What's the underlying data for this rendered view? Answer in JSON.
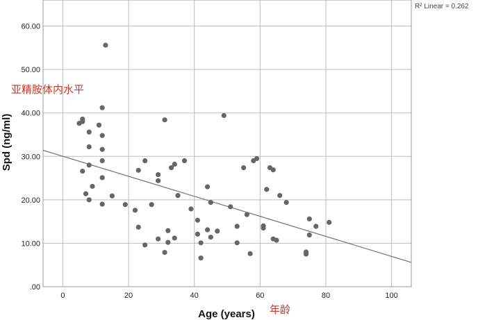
{
  "chart_data": {
    "type": "scatter",
    "xlabel": "Age (years)",
    "ylabel": "Spd (ng/ml)",
    "xlim": [
      -6,
      106
    ],
    "ylim": [
      0,
      66
    ],
    "x_ticks": [
      "0",
      "20",
      "40",
      "60",
      "80",
      "100"
    ],
    "y_ticks": [
      ".00",
      "10.00",
      "20.00",
      "30.00",
      "40.00",
      "50.00",
      "60.00"
    ],
    "grid": true,
    "legend_text": "R² Linear = 0.262",
    "annotations": {
      "ylabel_cn": "亚精胺体内水平",
      "xlabel_cn": "年龄"
    },
    "fit_line": {
      "x": [
        -6,
        106
      ],
      "y": [
        31.4,
        5.6
      ]
    },
    "points": [
      {
        "x": 13,
        "y": 55.6
      },
      {
        "x": 12,
        "y": 41.2
      },
      {
        "x": 49,
        "y": 39.4
      },
      {
        "x": 5,
        "y": 37.6
      },
      {
        "x": 6,
        "y": 38.0
      },
      {
        "x": 6,
        "y": 38.6
      },
      {
        "x": 31,
        "y": 38.4
      },
      {
        "x": 11,
        "y": 37.2
      },
      {
        "x": 8,
        "y": 35.6
      },
      {
        "x": 12,
        "y": 34.8
      },
      {
        "x": 8,
        "y": 32.2
      },
      {
        "x": 12,
        "y": 31.6
      },
      {
        "x": 12,
        "y": 29.0
      },
      {
        "x": 25,
        "y": 29.0
      },
      {
        "x": 37,
        "y": 29.0
      },
      {
        "x": 58,
        "y": 29.0
      },
      {
        "x": 59,
        "y": 29.5
      },
      {
        "x": 8,
        "y": 28.0
      },
      {
        "x": 34,
        "y": 28.2
      },
      {
        "x": 33,
        "y": 27.4
      },
      {
        "x": 55,
        "y": 27.4
      },
      {
        "x": 63,
        "y": 27.4
      },
      {
        "x": 64,
        "y": 26.9
      },
      {
        "x": 6,
        "y": 26.6
      },
      {
        "x": 23,
        "y": 26.8
      },
      {
        "x": 29,
        "y": 25.8
      },
      {
        "x": 12,
        "y": 25.1
      },
      {
        "x": 29,
        "y": 24.4
      },
      {
        "x": 9,
        "y": 23.1
      },
      {
        "x": 44,
        "y": 23.0
      },
      {
        "x": 62,
        "y": 22.4
      },
      {
        "x": 7,
        "y": 21.4
      },
      {
        "x": 15,
        "y": 20.9
      },
      {
        "x": 35,
        "y": 21.0
      },
      {
        "x": 66,
        "y": 21.0
      },
      {
        "x": 8,
        "y": 20.0
      },
      {
        "x": 45,
        "y": 19.4
      },
      {
        "x": 68,
        "y": 19.4
      },
      {
        "x": 12,
        "y": 19.0
      },
      {
        "x": 19,
        "y": 18.9
      },
      {
        "x": 27,
        "y": 18.9
      },
      {
        "x": 39,
        "y": 17.9
      },
      {
        "x": 22,
        "y": 17.6
      },
      {
        "x": 51,
        "y": 18.4
      },
      {
        "x": 56,
        "y": 16.6
      },
      {
        "x": 75,
        "y": 15.6
      },
      {
        "x": 41,
        "y": 15.3
      },
      {
        "x": 81,
        "y": 14.8
      },
      {
        "x": 53,
        "y": 13.9
      },
      {
        "x": 61,
        "y": 14.0
      },
      {
        "x": 77,
        "y": 13.9
      },
      {
        "x": 23,
        "y": 13.7
      },
      {
        "x": 61,
        "y": 13.5
      },
      {
        "x": 44,
        "y": 13.1
      },
      {
        "x": 32,
        "y": 12.9
      },
      {
        "x": 47,
        "y": 12.8
      },
      {
        "x": 41,
        "y": 12.1
      },
      {
        "x": 75,
        "y": 11.9
      },
      {
        "x": 45,
        "y": 11.4
      },
      {
        "x": 29,
        "y": 11.0
      },
      {
        "x": 34,
        "y": 11.2
      },
      {
        "x": 64,
        "y": 11.0
      },
      {
        "x": 65,
        "y": 10.7
      },
      {
        "x": 32,
        "y": 10.2
      },
      {
        "x": 42,
        "y": 10.1
      },
      {
        "x": 53,
        "y": 10.1
      },
      {
        "x": 25,
        "y": 9.6
      },
      {
        "x": 74,
        "y": 8.0
      },
      {
        "x": 31,
        "y": 7.9
      },
      {
        "x": 57,
        "y": 7.6
      },
      {
        "x": 74,
        "y": 7.5
      },
      {
        "x": 42,
        "y": 6.6
      }
    ],
    "colors": {
      "point": "#666666",
      "grid": "#bdbdbd",
      "line": "#7a7a7a",
      "annotation": "#c0392b"
    }
  }
}
